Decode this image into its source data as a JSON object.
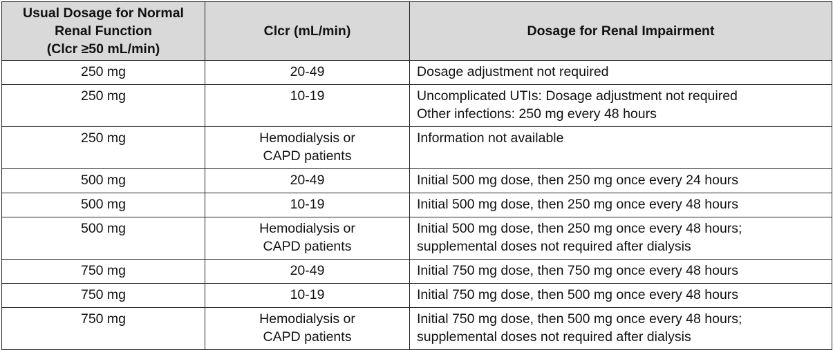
{
  "table": {
    "headers": [
      [
        "Usual Dosage for Normal",
        "Renal Function",
        "(Clcr ≥50 mL/min)"
      ],
      [
        "Clcr (mL/min)"
      ],
      [
        "Dosage for Renal Impairment"
      ]
    ],
    "rows": [
      {
        "dose": "250 mg",
        "clcr": [
          "20-49"
        ],
        "adjust": [
          "Dosage adjustment not required"
        ]
      },
      {
        "dose": "250 mg",
        "clcr": [
          "10-19"
        ],
        "adjust": [
          "Uncomplicated UTIs: Dosage adjustment not required",
          "Other infections: 250 mg every 48 hours"
        ]
      },
      {
        "dose": "250 mg",
        "clcr": [
          "Hemodialysis or",
          "CAPD patients"
        ],
        "adjust": [
          "Information not available"
        ]
      },
      {
        "dose": "500 mg",
        "clcr": [
          "20-49"
        ],
        "adjust": [
          "Initial 500 mg dose, then 250 mg once every 24 hours"
        ]
      },
      {
        "dose": "500 mg",
        "clcr": [
          "10-19"
        ],
        "adjust": [
          "Initial 500 mg dose, then 250 mg once every 48 hours"
        ]
      },
      {
        "dose": "500 mg",
        "clcr": [
          "Hemodialysis or",
          "CAPD patients"
        ],
        "adjust": [
          "Initial 500 mg dose, then 250 mg once every 48 hours;",
          "supplemental doses not required after dialysis"
        ]
      },
      {
        "dose": "750 mg",
        "clcr": [
          "20-49"
        ],
        "adjust": [
          "Initial 750 mg dose, then 750 mg once every 48 hours"
        ]
      },
      {
        "dose": "750 mg",
        "clcr": [
          "10-19"
        ],
        "adjust": [
          "Initial 750 mg dose, then 500 mg once every 48 hours"
        ]
      },
      {
        "dose": "750 mg",
        "clcr": [
          "Hemodialysis or",
          "CAPD patients"
        ],
        "adjust": [
          "Initial 750 mg dose, then 500 mg once every 48 hours;",
          "supplemental doses not required after dialysis"
        ]
      }
    ]
  }
}
